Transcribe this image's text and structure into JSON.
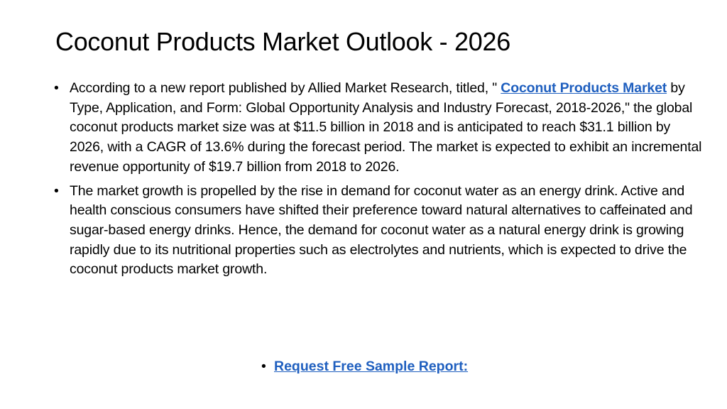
{
  "slide": {
    "title": "Coconut Products Market Outlook - 2026",
    "paragraphs": [
      {
        "pre": "According to a new report published by Allied Market Research, titled, \" ",
        "link": "Coconut Products Market",
        "post": " by Type, Application, and Form: Global Opportunity Analysis and Industry Forecast, 2018-2026,\" the global coconut products market size was at $11.5 billion in 2018 and is anticipated to reach $31.1 billion by 2026, with a CAGR of 13.6% during the forecast period. The market is expected to exhibit an incremental revenue opportunity of $19.7 billion from 2018 to 2026."
      },
      {
        "text": "The market growth is propelled by the rise in demand for coconut water as an energy drink. Active and health conscious consumers have shifted their preference toward natural alternatives to caffeinated and sugar-based energy drinks. Hence, the demand for coconut water as a natural energy drink is growing rapidly due to its nutritional properties such as electrolytes and nutrients, which is expected to drive the coconut products market growth."
      }
    ],
    "cta": {
      "bullet": "•",
      "link": "Request Free Sample Report:"
    },
    "colors": {
      "link": "#1f5fbf",
      "text": "#000000",
      "background": "#ffffff"
    }
  }
}
